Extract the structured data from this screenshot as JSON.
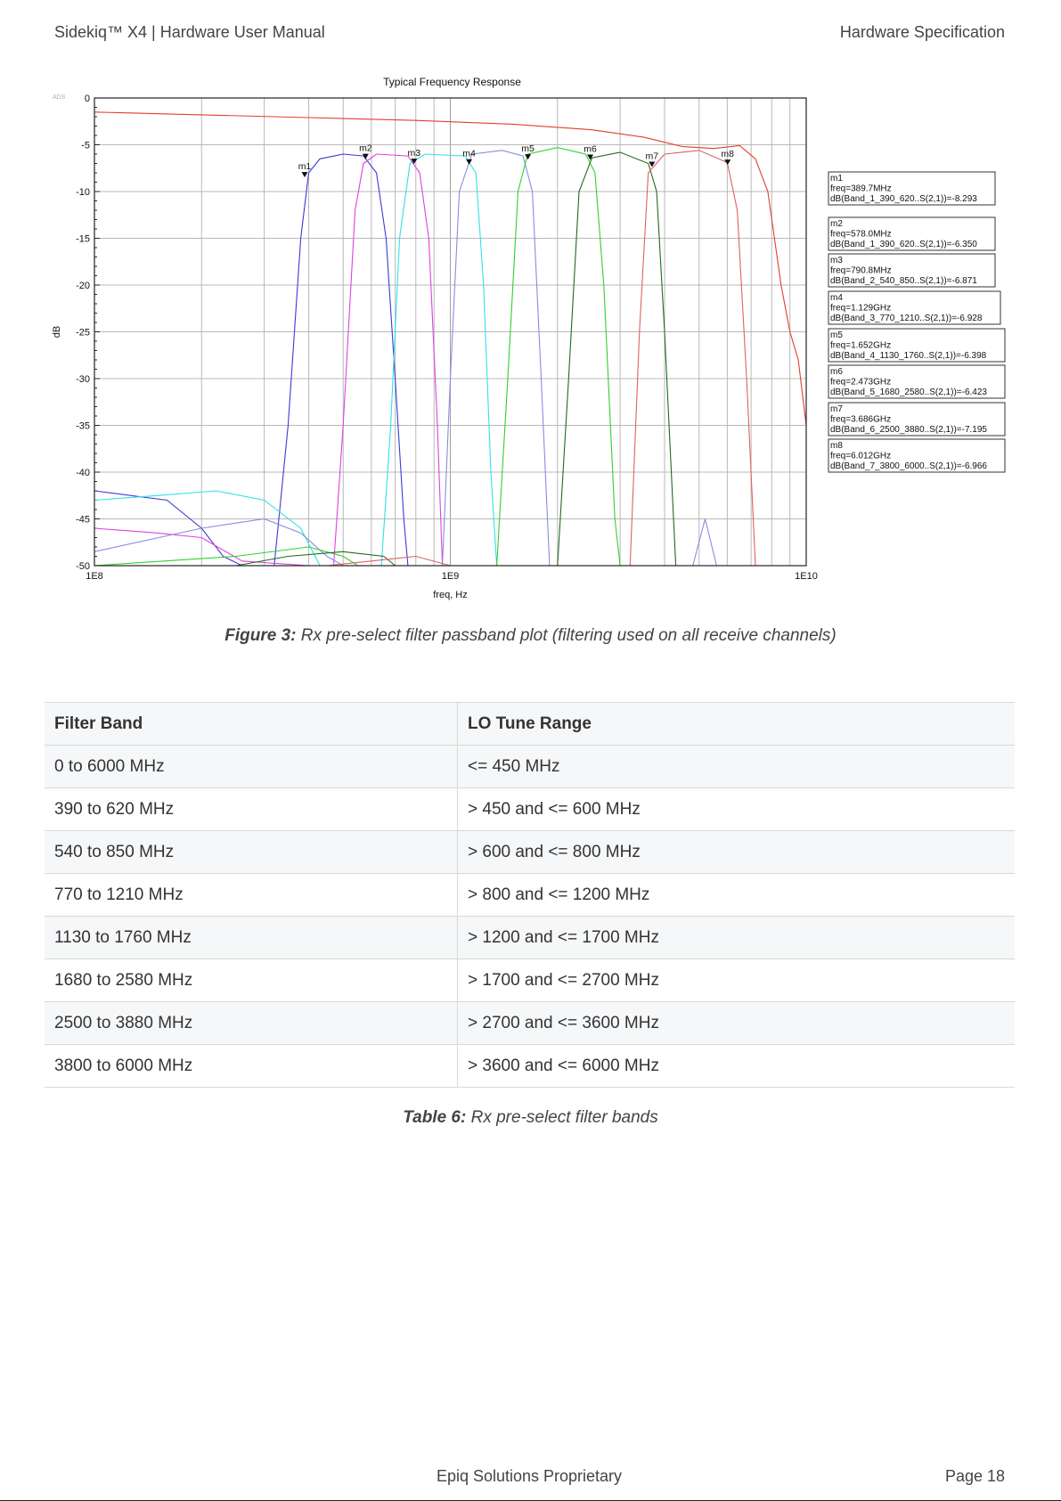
{
  "header": {
    "left": "Sidekiq™ X4 | Hardware User Manual",
    "right": "Hardware Specification"
  },
  "figure": {
    "label": "Figure 3:",
    "caption": " Rx pre-select filter passband plot (filtering used on all receive channels)"
  },
  "chart_data": {
    "type": "line",
    "title": "Typical Frequency Response",
    "xlabel": "freq, Hz",
    "ylabel": "dB",
    "watermark": "ADS",
    "x_scale": "log",
    "xlim": [
      100000000,
      10000000000
    ],
    "ylim": [
      -50,
      0
    ],
    "x_ticks": [
      "1E8",
      "1E9",
      "1E10"
    ],
    "y_ticks": [
      "0",
      "-5",
      "-10",
      "-15",
      "-20",
      "-25",
      "-30",
      "-35",
      "-40",
      "-45",
      "-50"
    ],
    "grid": true,
    "series_colors": [
      "#e0402a",
      "#3a3ad8",
      "#e040e0",
      "#30e0e8",
      "#8a8ae0",
      "#30d030",
      "#206a20",
      "#e06060"
    ],
    "markers": [
      {
        "name": "m1",
        "freq_hz": 389700000,
        "db": -8.293,
        "lines": [
          "m1",
          "freq=389.7MHz",
          "dB(Band_1_390_620..S(2,1))=-8.293"
        ]
      },
      {
        "name": "m2",
        "freq_hz": 578000000,
        "db": -6.35,
        "lines": [
          "m2",
          "freq=578.0MHz",
          "dB(Band_1_390_620..S(2,1))=-6.350"
        ]
      },
      {
        "name": "m3",
        "freq_hz": 790800000,
        "db": -6.871,
        "lines": [
          "m3",
          "freq=790.8MHz",
          "dB(Band_2_540_850..S(2,1))=-6.871"
        ]
      },
      {
        "name": "m4",
        "freq_hz": 1129000000,
        "db": -6.928,
        "lines": [
          "m4",
          "freq=1.129GHz",
          "dB(Band_3_770_1210..S(2,1))=-6.928"
        ]
      },
      {
        "name": "m5",
        "freq_hz": 1652000000,
        "db": -6.398,
        "lines": [
          "m5",
          "freq=1.652GHz",
          "dB(Band_4_1130_1760..S(2,1))=-6.398"
        ]
      },
      {
        "name": "m6",
        "freq_hz": 2473000000,
        "db": -6.423,
        "lines": [
          "m6",
          "freq=2.473GHz",
          "dB(Band_5_1680_2580..S(2,1))=-6.423"
        ]
      },
      {
        "name": "m7",
        "freq_hz": 3686000000,
        "db": -7.195,
        "lines": [
          "m7",
          "freq=3.686GHz",
          "dB(Band_6_2500_3880..S(2,1))=-7.195"
        ]
      },
      {
        "name": "m8",
        "freq_hz": 6012000000,
        "db": -6.966,
        "lines": [
          "m8",
          "freq=6.012GHz",
          "dB(Band_7_3800_6000..S(2,1))=-6.966"
        ]
      }
    ],
    "series": [
      {
        "color": "#e0402a",
        "points": [
          [
            100000000,
            -1.5
          ],
          [
            200000000,
            -1.8
          ],
          [
            400000000,
            -2.1
          ],
          [
            800000000,
            -2.4
          ],
          [
            1500000000,
            -2.8
          ],
          [
            2500000000,
            -3.4
          ],
          [
            3500000000,
            -4.2
          ],
          [
            4500000000,
            -5.2
          ],
          [
            5500000000,
            -5.4
          ],
          [
            6500000000,
            -5.1
          ],
          [
            7200000000,
            -6.5
          ],
          [
            7800000000,
            -10
          ],
          [
            8500000000,
            -20
          ],
          [
            9000000000,
            -25
          ],
          [
            9500000000,
            -28
          ],
          [
            10000000000,
            -35
          ]
        ]
      },
      {
        "color": "#3a3ad8",
        "points": [
          [
            100000000,
            -42
          ],
          [
            160000000,
            -43
          ],
          [
            200000000,
            -46
          ],
          [
            230000000,
            -49
          ],
          [
            260000000,
            -50
          ],
          [
            320000000,
            -50
          ],
          [
            350000000,
            -35
          ],
          [
            380000000,
            -15
          ],
          [
            400000000,
            -8
          ],
          [
            430000000,
            -6.5
          ],
          [
            500000000,
            -6
          ],
          [
            570000000,
            -6.2
          ],
          [
            620000000,
            -8
          ],
          [
            660000000,
            -15
          ],
          [
            700000000,
            -30
          ],
          [
            740000000,
            -45
          ],
          [
            760000000,
            -50
          ],
          [
            1000000000,
            -50
          ]
        ]
      },
      {
        "color": "#e040e0",
        "points": [
          [
            100000000,
            -46
          ],
          [
            150000000,
            -46.5
          ],
          [
            200000000,
            -47
          ],
          [
            260000000,
            -49.5
          ],
          [
            400000000,
            -50
          ],
          [
            470000000,
            -50
          ],
          [
            500000000,
            -35
          ],
          [
            540000000,
            -12
          ],
          [
            570000000,
            -7
          ],
          [
            620000000,
            -6
          ],
          [
            760000000,
            -6.2
          ],
          [
            820000000,
            -8
          ],
          [
            870000000,
            -15
          ],
          [
            920000000,
            -35
          ],
          [
            950000000,
            -50
          ]
        ]
      },
      {
        "color": "#30e0e8",
        "points": [
          [
            100000000,
            -43
          ],
          [
            150000000,
            -42.5
          ],
          [
            220000000,
            -42
          ],
          [
            300000000,
            -43
          ],
          [
            380000000,
            -46
          ],
          [
            430000000,
            -50
          ],
          [
            640000000,
            -50
          ],
          [
            680000000,
            -35
          ],
          [
            720000000,
            -15
          ],
          [
            770000000,
            -7
          ],
          [
            850000000,
            -6
          ],
          [
            1100000000,
            -6.2
          ],
          [
            1180000000,
            -8
          ],
          [
            1240000000,
            -20
          ],
          [
            1300000000,
            -40
          ],
          [
            1350000000,
            -50
          ]
        ]
      },
      {
        "color": "#8a8ae0",
        "points": [
          [
            100000000,
            -48.5
          ],
          [
            200000000,
            -46
          ],
          [
            300000000,
            -45
          ],
          [
            380000000,
            -46.5
          ],
          [
            450000000,
            -49
          ],
          [
            500000000,
            -50
          ],
          [
            950000000,
            -50
          ],
          [
            1000000000,
            -30
          ],
          [
            1060000000,
            -10
          ],
          [
            1150000000,
            -6
          ],
          [
            1400000000,
            -5.6
          ],
          [
            1600000000,
            -6.2
          ],
          [
            1700000000,
            -10
          ],
          [
            1800000000,
            -30
          ],
          [
            1900000000,
            -50
          ],
          [
            4800000000,
            -50
          ],
          [
            5200000000,
            -45
          ],
          [
            5600000000,
            -50
          ]
        ]
      },
      {
        "color": "#30d030",
        "points": [
          [
            100000000,
            -50
          ],
          [
            250000000,
            -49
          ],
          [
            400000000,
            -48
          ],
          [
            500000000,
            -49
          ],
          [
            550000000,
            -50
          ],
          [
            1350000000,
            -50
          ],
          [
            1450000000,
            -30
          ],
          [
            1550000000,
            -10
          ],
          [
            1650000000,
            -6
          ],
          [
            2000000000,
            -5.3
          ],
          [
            2400000000,
            -6
          ],
          [
            2550000000,
            -8
          ],
          [
            2700000000,
            -20
          ],
          [
            2900000000,
            -45
          ],
          [
            3000000000,
            -50
          ]
        ]
      },
      {
        "color": "#206a20",
        "points": [
          [
            250000000,
            -50
          ],
          [
            350000000,
            -49
          ],
          [
            500000000,
            -48.5
          ],
          [
            650000000,
            -49
          ],
          [
            700000000,
            -50
          ],
          [
            2000000000,
            -50
          ],
          [
            2150000000,
            -30
          ],
          [
            2300000000,
            -10
          ],
          [
            2500000000,
            -6.4
          ],
          [
            3000000000,
            -5.8
          ],
          [
            3600000000,
            -7
          ],
          [
            3800000000,
            -10
          ],
          [
            4000000000,
            -25
          ],
          [
            4300000000,
            -50
          ]
        ]
      },
      {
        "color": "#e06060",
        "points": [
          [
            450000000,
            -50
          ],
          [
            600000000,
            -49.5
          ],
          [
            800000000,
            -49
          ],
          [
            1000000000,
            -50
          ],
          [
            3200000000,
            -50
          ],
          [
            3400000000,
            -25
          ],
          [
            3600000000,
            -8
          ],
          [
            4000000000,
            -6
          ],
          [
            5000000000,
            -5.6
          ],
          [
            6000000000,
            -6.9
          ],
          [
            6400000000,
            -12
          ],
          [
            6800000000,
            -30
          ],
          [
            7200000000,
            -50
          ]
        ]
      }
    ]
  },
  "table": {
    "headers": [
      "Filter Band",
      "LO Tune Range"
    ],
    "rows": [
      [
        "0 to 6000 MHz",
        "<= 450 MHz"
      ],
      [
        "390 to 620 MHz",
        "> 450 and <= 600 MHz"
      ],
      [
        "540 to 850 MHz",
        "> 600 and <= 800 MHz"
      ],
      [
        "770 to 1210 MHz",
        "> 800 and <= 1200 MHz"
      ],
      [
        "1130 to 1760 MHz",
        "> 1200 and <= 1700 MHz"
      ],
      [
        "1680 to 2580 MHz",
        "> 1700 and <= 2700 MHz"
      ],
      [
        "2500 to 3880 MHz",
        "> 2700 and <= 3600 MHz"
      ],
      [
        "3800 to 6000 MHz",
        "> 3600 and <= 6000 MHz"
      ]
    ]
  },
  "table_caption": {
    "label": "Table 6:",
    "caption": " Rx pre-select filter bands"
  },
  "footer": {
    "center": "Epiq Solutions Proprietary",
    "page": "Page 18"
  }
}
